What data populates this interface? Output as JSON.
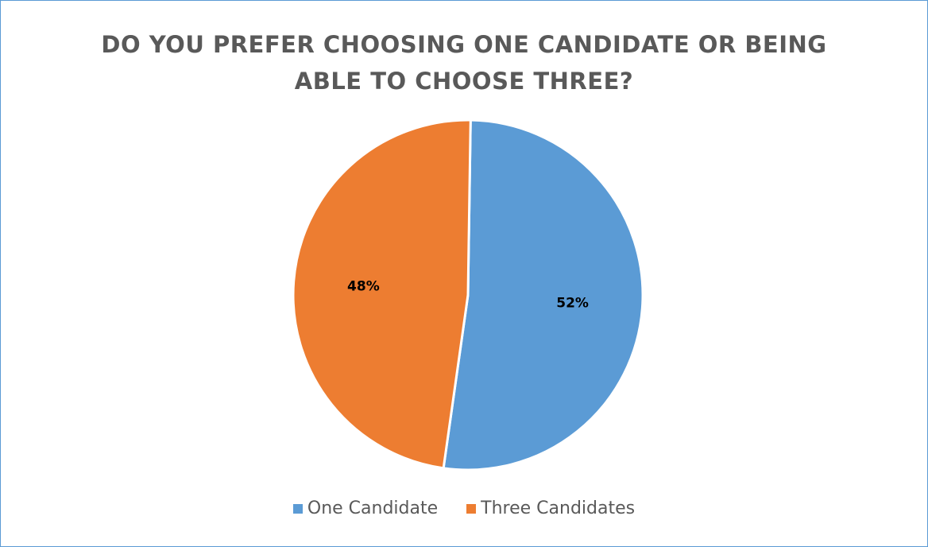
{
  "chart_data": {
    "type": "pie",
    "title": "DO YOU PREFER CHOOSING ONE CANDIDATE OR BEING ABLE TO CHOOSE THREE?",
    "title_lines": [
      "DO YOU PREFER CHOOSING ONE CANDIDATE OR BEING",
      "ABLE TO CHOOSE THREE?"
    ],
    "categories": [
      "One Candidate",
      "Three Candidates"
    ],
    "values": [
      52,
      48
    ],
    "data_labels": [
      "52%",
      "48%"
    ],
    "colors": [
      "#5b9bd5",
      "#ed7d31"
    ],
    "legend_position": "bottom"
  }
}
